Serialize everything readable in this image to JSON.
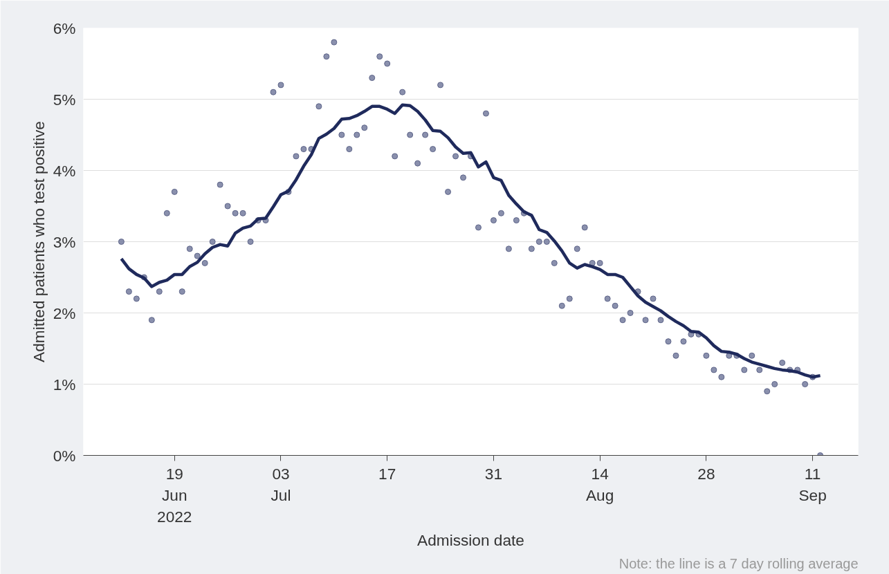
{
  "chart_data": {
    "type": "scatter",
    "xlabel": "Admission date",
    "ylabel": "Admitted patients who test positive",
    "annotations": [
      "Note: the line is a 7 day rolling average"
    ],
    "x": [
      "2022-06-12",
      "2022-06-13",
      "2022-06-14",
      "2022-06-15",
      "2022-06-16",
      "2022-06-17",
      "2022-06-18",
      "2022-06-19",
      "2022-06-20",
      "2022-06-21",
      "2022-06-22",
      "2022-06-23",
      "2022-06-24",
      "2022-06-25",
      "2022-06-26",
      "2022-06-27",
      "2022-06-28",
      "2022-06-29",
      "2022-06-30",
      "2022-07-01",
      "2022-07-02",
      "2022-07-03",
      "2022-07-04",
      "2022-07-05",
      "2022-07-06",
      "2022-07-07",
      "2022-07-08",
      "2022-07-09",
      "2022-07-10",
      "2022-07-11",
      "2022-07-12",
      "2022-07-13",
      "2022-07-14",
      "2022-07-15",
      "2022-07-16",
      "2022-07-17",
      "2022-07-18",
      "2022-07-19",
      "2022-07-20",
      "2022-07-21",
      "2022-07-22",
      "2022-07-23",
      "2022-07-24",
      "2022-07-25",
      "2022-07-26",
      "2022-07-27",
      "2022-07-28",
      "2022-07-29",
      "2022-07-30",
      "2022-07-31",
      "2022-08-01",
      "2022-08-02",
      "2022-08-03",
      "2022-08-04",
      "2022-08-05",
      "2022-08-06",
      "2022-08-07",
      "2022-08-08",
      "2022-08-09",
      "2022-08-10",
      "2022-08-11",
      "2022-08-12",
      "2022-08-13",
      "2022-08-14",
      "2022-08-15",
      "2022-08-16",
      "2022-08-17",
      "2022-08-18",
      "2022-08-19",
      "2022-08-20",
      "2022-08-21",
      "2022-08-22",
      "2022-08-23",
      "2022-08-24",
      "2022-08-25",
      "2022-08-26",
      "2022-08-27",
      "2022-08-28",
      "2022-08-29",
      "2022-08-30",
      "2022-08-31",
      "2022-09-01",
      "2022-09-02",
      "2022-09-03",
      "2022-09-04",
      "2022-09-05",
      "2022-09-06",
      "2022-09-07",
      "2022-09-08",
      "2022-09-09",
      "2022-09-10",
      "2022-09-11",
      "2022-09-12"
    ],
    "series": [
      {
        "color": "#7d84a4",
        "marker": "circle",
        "values": [
          3.0,
          2.3,
          2.2,
          2.5,
          1.9,
          2.3,
          3.4,
          3.7,
          2.3,
          2.9,
          2.8,
          2.7,
          3.0,
          3.8,
          3.5,
          3.4,
          3.4,
          3.0,
          3.3,
          3.3,
          5.1,
          5.2,
          3.7,
          4.2,
          4.3,
          4.3,
          4.9,
          5.6,
          5.8,
          4.5,
          4.3,
          4.5,
          4.6,
          5.3,
          5.6,
          5.5,
          4.2,
          5.1,
          4.5,
          4.1,
          4.5,
          4.3,
          5.2,
          3.7,
          4.2,
          3.9,
          4.2,
          3.2,
          4.8,
          3.3,
          3.4,
          2.9,
          3.3,
          3.4,
          2.9,
          3.0,
          3.0,
          2.7,
          2.1,
          2.2,
          2.9,
          3.2,
          2.7,
          2.7,
          2.2,
          2.1,
          1.9,
          2.0,
          2.3,
          1.9,
          2.2,
          1.9,
          1.6,
          1.4,
          1.6,
          1.7,
          1.7,
          1.4,
          1.2,
          1.1,
          1.4,
          1.4,
          1.2,
          1.4,
          1.2,
          0.9,
          1.0,
          1.3,
          1.2,
          1.2,
          1.0,
          1.1,
          0.0
        ]
      },
      {
        "type": "line",
        "color": "#1f2a5c",
        "marker": "none",
        "line_style": "solid",
        "values": [
          2.76,
          2.62,
          2.54,
          2.49,
          2.37,
          2.43,
          2.46,
          2.54,
          2.54,
          2.65,
          2.71,
          2.83,
          2.92,
          2.96,
          2.94,
          3.12,
          3.19,
          3.22,
          3.32,
          3.33,
          3.49,
          3.66,
          3.71,
          3.87,
          4.06,
          4.22,
          4.45,
          4.51,
          4.59,
          4.72,
          4.73,
          4.77,
          4.83,
          4.9,
          4.9,
          4.86,
          4.8,
          4.92,
          4.91,
          4.83,
          4.71,
          4.56,
          4.55,
          4.46,
          4.33,
          4.24,
          4.25,
          4.05,
          4.12,
          3.9,
          3.86,
          3.65,
          3.53,
          3.42,
          3.37,
          3.17,
          3.13,
          3.01,
          2.87,
          2.7,
          2.63,
          2.68,
          2.65,
          2.61,
          2.54,
          2.54,
          2.5,
          2.37,
          2.24,
          2.15,
          2.09,
          2.03,
          1.95,
          1.88,
          1.82,
          1.74,
          1.73,
          1.65,
          1.54,
          1.46,
          1.45,
          1.42,
          1.36,
          1.31,
          1.28,
          1.25,
          1.22,
          1.2,
          1.19,
          1.17,
          1.13,
          1.1,
          1.12
        ]
      }
    ],
    "xlim": [
      "2022-06-07",
      "2022-09-17"
    ],
    "xticks": [
      {
        "value": "2022-06-19",
        "label": "19\nJun\n2022"
      },
      {
        "value": "2022-07-03",
        "label": "03\nJul"
      },
      {
        "value": "2022-07-17",
        "label": "17"
      },
      {
        "value": "2022-07-31",
        "label": "31"
      },
      {
        "value": "2022-08-14",
        "label": "14\nAug"
      },
      {
        "value": "2022-08-28",
        "label": "28"
      },
      {
        "value": "2022-09-11",
        "label": "11\nSep"
      }
    ],
    "ylim": [
      0,
      6
    ],
    "yticks": [
      {
        "value": 0,
        "label": "0%"
      },
      {
        "value": 1,
        "label": "1%"
      },
      {
        "value": 2,
        "label": "2%"
      },
      {
        "value": 3,
        "label": "3%"
      },
      {
        "value": 4,
        "label": "4%"
      },
      {
        "value": 5,
        "label": "5%"
      },
      {
        "value": 6,
        "label": "6%"
      }
    ],
    "grid": "y"
  }
}
